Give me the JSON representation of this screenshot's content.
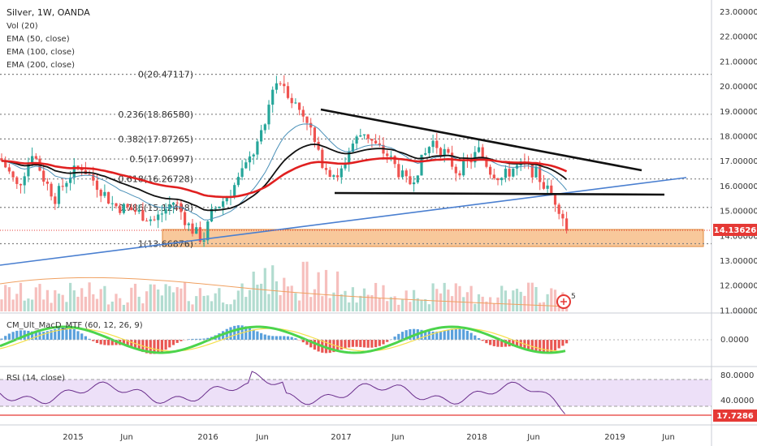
{
  "chart_data": {
    "type": "candlestick",
    "symbol_header": "Silver, 1W, OANDA",
    "indicators": [
      "Vol (20)",
      "EMA (50, close)",
      "EMA (100, close)",
      "EMA (200, close)"
    ],
    "macd_label": "CM_Ult_MacD_MTF (60, 12, 26, 9)",
    "rsi_label": "RSI (14, close)",
    "price_axis": [
      "23.00000",
      "22.00000",
      "21.00000",
      "20.00000",
      "19.00000",
      "18.00000",
      "17.00000",
      "16.00000",
      "15.00000",
      "14.00000",
      "13.00000",
      "12.00000",
      "11.00000"
    ],
    "macd_axis": [
      "0.0000"
    ],
    "rsi_axis": [
      "80.0000",
      "40.0000"
    ],
    "x_ticks": [
      "2015",
      "Jun",
      "2016",
      "Jun",
      "2017",
      "Jun",
      "2018",
      "Jun",
      "2019",
      "Jun"
    ],
    "current_price": "14.13626",
    "rsi_value": "17.7286",
    "fib_levels": [
      {
        "label": "0(20.47117)",
        "value": 20.47117
      },
      {
        "label": "0.236(18.86580)",
        "value": 18.8658
      },
      {
        "label": "0.382(17.87265)",
        "value": 17.87265
      },
      {
        "label": "0.5(17.06997)",
        "value": 17.06997
      },
      {
        "label": "0.618(16.26728)",
        "value": 16.26728
      },
      {
        "label": "0.786(15.12448)",
        "value": 15.12448
      },
      {
        "label": "1(13.66876)",
        "value": 13.66876
      }
    ],
    "alert_count": "5",
    "y_range": [
      11,
      23.3
    ],
    "grid": false
  },
  "colors": {
    "up": "#26a69a",
    "down": "#ef5350",
    "ema50": "#4a90b8",
    "ema100": "#111111",
    "ema200": "#e02020",
    "trendline": "#4a7fd0",
    "zone": "#f5b57a",
    "rsi_band": "#e6d4f5",
    "rsi_line": "#6a2e8c",
    "price_tag": "#e53935"
  }
}
